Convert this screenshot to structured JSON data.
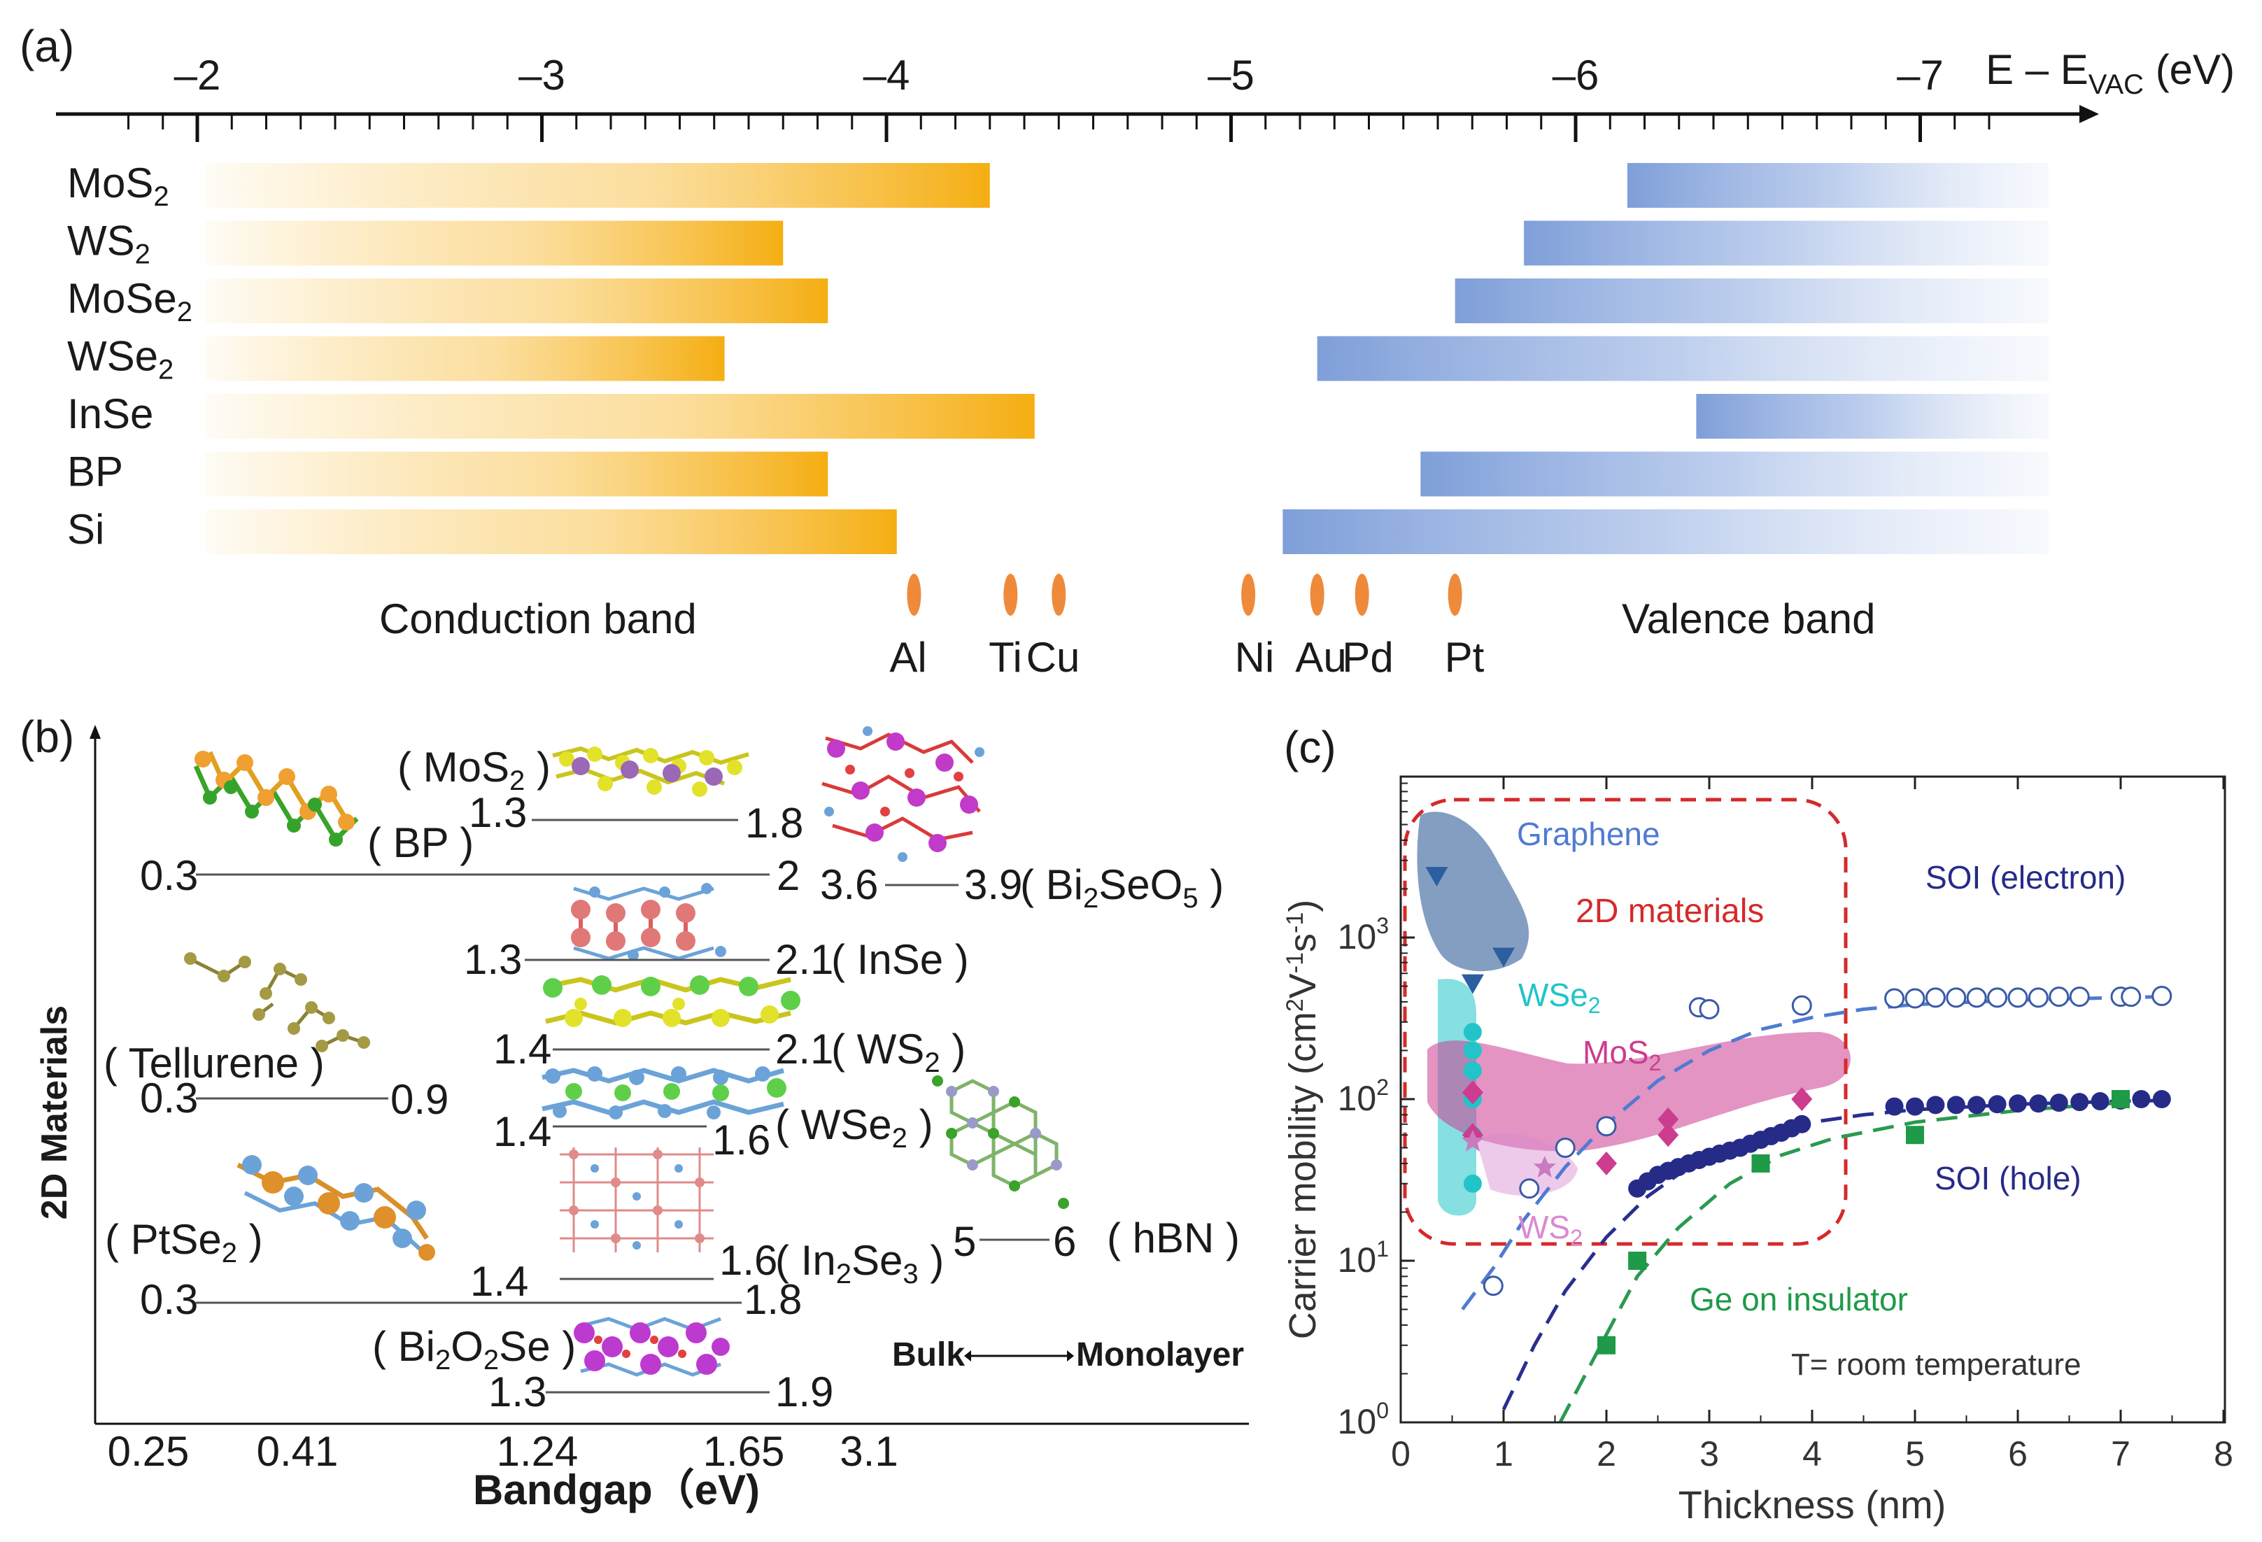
{
  "figure": {
    "panel_a": {
      "label": "(a)",
      "axis_title": "E – E",
      "axis_title_sub": "VAC",
      "axis_unit": " (eV)",
      "ticks": [
        "–2",
        "–3",
        "–4",
        "–5",
        "–6",
        "–7"
      ],
      "tick_values": [
        -2,
        -3,
        -4,
        -5,
        -6,
        -7
      ],
      "materials": [
        {
          "base": "MoS",
          "sub": "2",
          "cb": -4.3,
          "vb": -6.15
        },
        {
          "base": "WS",
          "sub": "2",
          "cb": -3.7,
          "vb": -5.85
        },
        {
          "base": "MoSe",
          "sub": "2",
          "cb": -3.83,
          "vb": -5.65
        },
        {
          "base": "WSe",
          "sub": "2",
          "cb": -3.53,
          "vb": -5.25
        },
        {
          "base": "InSe",
          "sub": "",
          "cb": -4.43,
          "vb": -6.35
        },
        {
          "base": "BP",
          "sub": "",
          "cb": -3.83,
          "vb": -5.55
        },
        {
          "base": "Si",
          "sub": "",
          "cb": -4.03,
          "vb": -5.15
        }
      ],
      "metals": [
        {
          "name": "Al",
          "wf": -4.08
        },
        {
          "name": "Ti",
          "wf": -4.36
        },
        {
          "name": "Cu",
          "wf": -4.5
        },
        {
          "name": "Ni",
          "wf": -5.05
        },
        {
          "name": "Au",
          "wf": -5.25
        },
        {
          "name": "Pd",
          "wf": -5.38
        },
        {
          "name": "Pt",
          "wf": -5.65
        }
      ],
      "conduction_label": "Conduction band",
      "valence_label": "Valence band",
      "colors": {
        "conduction": "#f7b31c",
        "valence": "#7f9fd9",
        "metal": "#ee8a3a"
      }
    },
    "panel_b": {
      "label": "(b)",
      "ylabel": "2D Materials",
      "xlabel": "Bandgap（eV)",
      "x_ticks": [
        "0.25",
        "0.41",
        "1.24",
        "1.65",
        "3.1"
      ],
      "legend_bulk": "Bulk",
      "legend_mono": "Monolayer",
      "materials": [
        {
          "name_pre": "( MoS",
          "name_sub": "2",
          "name_post": " )",
          "bulk": "1.3",
          "mono": "1.8"
        },
        {
          "name_pre": "( BP )",
          "name_sub": "",
          "name_post": "",
          "bulk": "0.3",
          "mono": "2"
        },
        {
          "name_pre": "( Bi",
          "name_sub": "2",
          "name_mid": "SeO",
          "name_sub2": "5",
          "name_post": " )",
          "bulk": "3.6",
          "mono": "3.9"
        },
        {
          "name_pre": "( InSe )",
          "name_sub": "",
          "name_post": "",
          "bulk": "1.3",
          "mono": "2.1"
        },
        {
          "name_pre": "( Tellurene )",
          "name_sub": "",
          "name_post": "",
          "bulk": "0.3",
          "mono": "0.9"
        },
        {
          "name_pre": "( WS",
          "name_sub": "2",
          "name_post": " )",
          "bulk": "1.4",
          "mono": "2.1"
        },
        {
          "name_pre": "( WSe",
          "name_sub": "2",
          "name_post": " )",
          "bulk": "1.4",
          "mono": "1.6"
        },
        {
          "name_pre": "( hBN )",
          "name_sub": "",
          "name_post": "",
          "bulk": "5",
          "mono": "6"
        },
        {
          "name_pre": "( PtSe",
          "name_sub": "2",
          "name_post": " )",
          "bulk": "0.3",
          "mono": "1.8"
        },
        {
          "name_pre": "( In",
          "name_sub": "2",
          "name_mid": "Se",
          "name_sub2": "3",
          "name_post": " )",
          "bulk": "1.4",
          "mono": "1.6"
        },
        {
          "name_pre": "( Bi",
          "name_sub": "2",
          "name_mid": "O",
          "name_sub2": "2",
          "name_post": "Se )",
          "bulk": "1.3",
          "mono": "1.9"
        }
      ]
    },
    "panel_c": {
      "label": "(c)",
      "chart_data": {
        "type": "scatter",
        "xlabel": "Thickness (nm)",
        "ylabel_pre": "Carrier mobility (cm",
        "ylabel_sup1": "2",
        "ylabel_mid": "V",
        "ylabel_sup2": "-1",
        "ylabel_mid2": "s",
        "ylabel_sup3": "-1",
        "ylabel_post": ")",
        "x_ticks": [
          "0",
          "1",
          "2",
          "3",
          "4",
          "5",
          "6",
          "7",
          "8"
        ],
        "x_tick_values": [
          0,
          1,
          2,
          3,
          4,
          5,
          6,
          7,
          8
        ],
        "xlim": [
          0,
          8
        ],
        "y_scale": "log",
        "ylim": [
          1,
          10000
        ],
        "y_tick_values": [
          1,
          10,
          100,
          1000
        ],
        "y_tick_labels": [
          "10",
          "10",
          "10",
          "10"
        ],
        "y_tick_exps": [
          "0",
          "1",
          "2",
          "3"
        ],
        "annotations": {
          "graphene": "Graphene",
          "two_d": "2D materials",
          "wse2_pre": "WSe",
          "wse2_sub": "2",
          "mos2_pre": "MoS",
          "mos2_sub": "2",
          "ws2_pre": "WS",
          "ws2_sub": "2",
          "soi_e": "SOI (electron)",
          "soi_h": "SOI (hole)",
          "ge": "Ge on insulator",
          "temp": "T= room temperature"
        },
        "series": [
          {
            "name": "Graphene",
            "marker": "triangle-down",
            "color": "#2b5fa0",
            "x": [
              0.35,
              0.7,
              1.0
            ],
            "y": [
              2400,
              520,
              760
            ]
          },
          {
            "name": "WSe2",
            "marker": "circle",
            "color": "#22c4c9",
            "x": [
              0.7,
              0.7,
              0.7,
              0.7,
              0.7,
              0.7
            ],
            "y": [
              260,
              200,
              150,
              100,
              60,
              30
            ]
          },
          {
            "name": "MoS2",
            "marker": "diamond",
            "color": "#cc3c8f",
            "x": [
              0.7,
              0.7,
              2.0,
              2.6,
              2.6,
              3.9
            ],
            "y": [
              110,
              60,
              40,
              75,
              60,
              100
            ]
          },
          {
            "name": "WS2",
            "marker": "star",
            "color": "#c97bc0",
            "x": [
              0.7,
              1.4
            ],
            "y": [
              55,
              38
            ]
          },
          {
            "name": "SOI (electron)",
            "marker": "open-circle",
            "color": "#3a5ba8",
            "x": [
              0.9,
              1.25,
              1.6,
              2.0,
              2.9,
              3.0,
              3.9,
              4.8,
              5.0,
              5.2,
              5.4,
              5.6,
              5.8,
              6.0,
              6.2,
              6.4,
              6.6,
              7.0,
              7.1,
              7.4
            ],
            "y": [
              7,
              28,
              50,
              68,
              370,
              360,
              380,
              420,
              420,
              425,
              425,
              425,
              425,
              425,
              425,
              430,
              430,
              430,
              430,
              435
            ]
          },
          {
            "name": "SOI (hole)",
            "marker": "filled-circle",
            "color": "#262b88",
            "x": [
              2.3,
              2.4,
              2.5,
              2.6,
              2.7,
              2.8,
              2.9,
              3.0,
              3.1,
              3.2,
              3.3,
              3.4,
              3.5,
              3.6,
              3.7,
              3.8,
              3.9,
              4.8,
              5.0,
              5.2,
              5.4,
              5.6,
              5.8,
              6.0,
              6.2,
              6.4,
              6.6,
              6.8,
              7.0,
              7.2,
              7.4
            ],
            "y": [
              28,
              31,
              34,
              36,
              38,
              40,
              42,
              44,
              46,
              48,
              50,
              53,
              56,
              59,
              62,
              66,
              70,
              90,
              90,
              92,
              92,
              92,
              93,
              94,
              94,
              95,
              96,
              97,
              98,
              100,
              100
            ]
          },
          {
            "name": "Ge on insulator",
            "marker": "filled-square",
            "color": "#1e9a48",
            "x": [
              2.0,
              2.3,
              3.5,
              5.0,
              7.0
            ],
            "y": [
              3,
              10,
              40,
              60,
              100
            ]
          }
        ],
        "fit_curves": [
          {
            "name": "SOI (electron) fit",
            "color": "#4f7bd1",
            "x": [
              0.6,
              0.9,
              1.2,
              1.6,
              2.0,
              2.5,
              3.0,
              3.5,
              4.0,
              4.5,
              5.0,
              6.0,
              7.0,
              7.4
            ],
            "y": [
              5,
              9,
              18,
              38,
              70,
              130,
              200,
              270,
              320,
              360,
              385,
              410,
              425,
              430
            ]
          },
          {
            "name": "SOI (hole) fit",
            "color": "#2a2e8f",
            "x": [
              1.0,
              1.3,
              1.6,
              2.0,
              2.4,
              2.8,
              3.2,
              3.6,
              4.0,
              4.5,
              5.0,
              6.0,
              7.0,
              7.4
            ],
            "y": [
              1.2,
              3,
              6.5,
              14,
              25,
              38,
              50,
              62,
              72,
              80,
              86,
              93,
              97,
              98
            ]
          },
          {
            "name": "Ge fit",
            "color": "#2a9a50",
            "x": [
              1.55,
              1.8,
              2.0,
              2.3,
              2.7,
              3.2,
              3.7,
              4.2,
              5.0,
              6.0,
              7.0
            ],
            "y": [
              1,
              2,
              3.5,
              8,
              16,
              30,
              45,
              57,
              72,
              85,
              95
            ]
          }
        ]
      }
    }
  }
}
